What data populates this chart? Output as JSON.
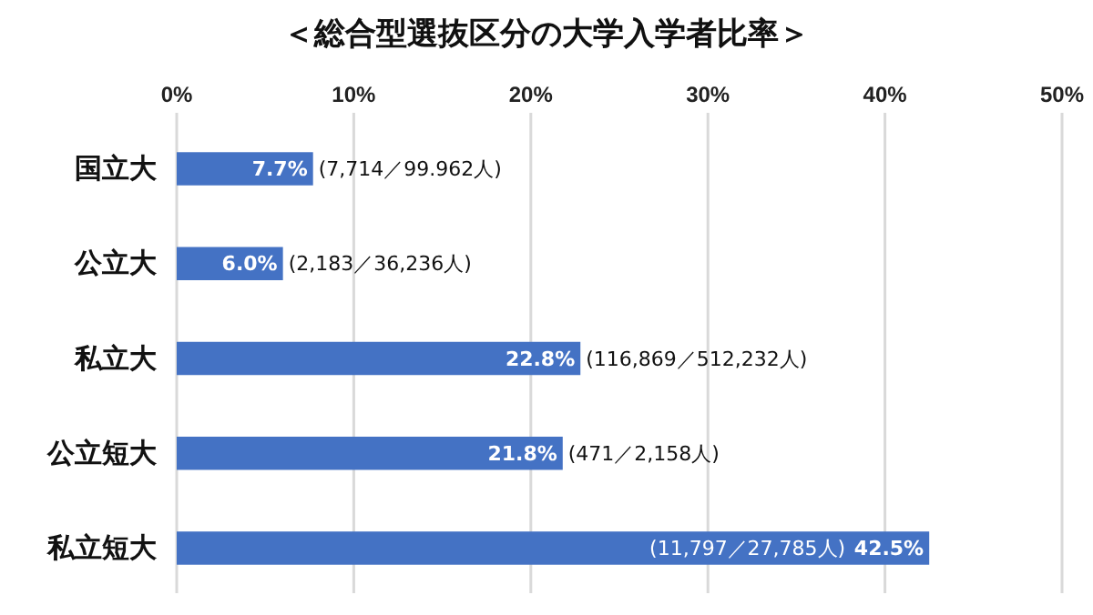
{
  "chart_data": {
    "type": "bar",
    "orientation": "horizontal",
    "title": "＜総合型選抜区分の大学入学者比率＞",
    "categories": [
      "国立大",
      "公立大",
      "私立大",
      "公立短大",
      "私立短大"
    ],
    "values": [
      7.7,
      6.0,
      22.8,
      21.8,
      42.5
    ],
    "value_labels": [
      "7.7%",
      "6.0%",
      "22.8%",
      "21.8%",
      "42.5%"
    ],
    "color": "#4472c4",
    "xlim": [
      0,
      50
    ],
    "xticks": [
      {
        "value": 0,
        "label": "0%"
      },
      {
        "value": 10,
        "label": "10%"
      },
      {
        "value": 20,
        "label": "20%"
      },
      {
        "value": 30,
        "label": "30%"
      },
      {
        "value": 40,
        "label": "40%"
      },
      {
        "value": 50,
        "label": "50%"
      }
    ],
    "grid": "x",
    "annotations": [
      "(7,714／99.962人)",
      "(2,183／36,236人)",
      "(116,869／512,232人)",
      "(471／2,158人)",
      "(11,797／27,785人)"
    ]
  }
}
